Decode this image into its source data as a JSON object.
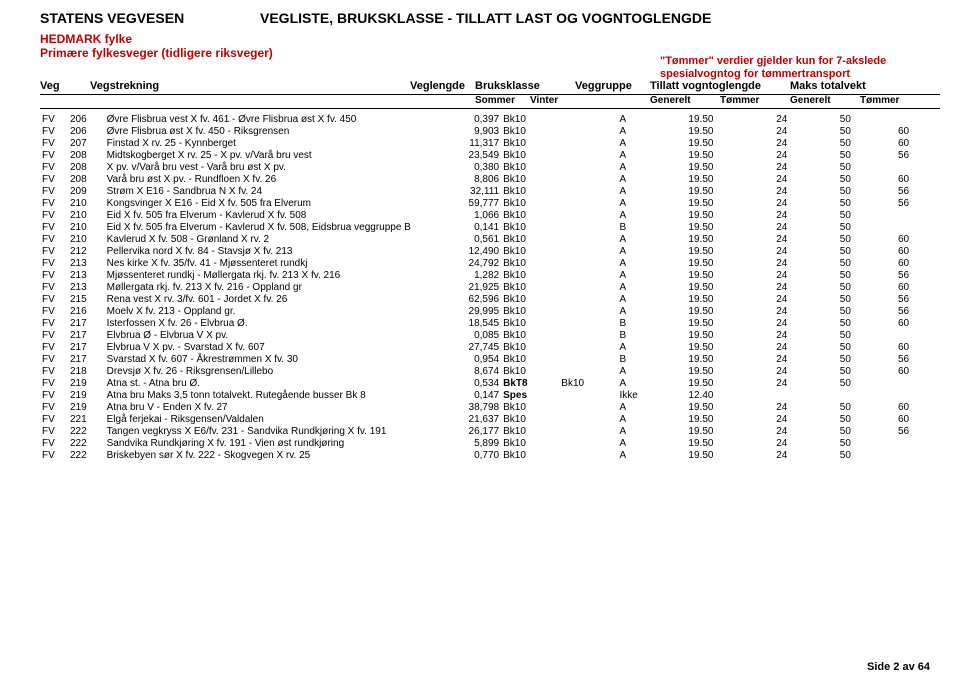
{
  "header": {
    "org": "STATENS VEGVESEN",
    "listTitle": "VEGLISTE, BRUKSKLASSE - TILLATT LAST OG VOGNTOGLENGDE",
    "region": "HEDMARK fylke",
    "subtitle": "Primære fylkesveger (tidligere riksveger)",
    "note1": "\"Tømmer\" verdier gjelder kun for 7-akslede",
    "note2": "spesialvogntog for tømmertransport",
    "colors": {
      "accent": "#c00000"
    }
  },
  "columns": {
    "veg": "Veg",
    "strekning": "Vegstrekning",
    "lengde": "Veglengde",
    "bruksklasse": "Bruksklasse",
    "veggruppe": "Veggruppe",
    "tillatt": "Tillatt vogntoglengde",
    "maks": "Maks totalvekt",
    "sommer": "Sommer",
    "vinter": "Vinter",
    "generelt": "Generelt",
    "tommer": "Tømmer"
  },
  "rows": [
    {
      "pf": "FV",
      "n": "206",
      "d": "Øvre Flisbrua vest X fv. 461 - Øvre Flisbrua øst X fv. 450",
      "len": "0,397",
      "bk1": "Bk10",
      "bk2": "",
      "vg": "A",
      "g1": "19.50",
      "t1": "24",
      "g2": "50",
      "t2": ""
    },
    {
      "pf": "FV",
      "n": "206",
      "d": "Øvre Flisbrua øst X fv. 450 - Riksgrensen",
      "len": "9,903",
      "bk1": "Bk10",
      "bk2": "",
      "vg": "A",
      "g1": "19.50",
      "t1": "24",
      "g2": "50",
      "t2": "60"
    },
    {
      "pf": "FV",
      "n": "207",
      "d": "Finstad X rv. 25 - Kynnberget",
      "len": "11,317",
      "bk1": "Bk10",
      "bk2": "",
      "vg": "A",
      "g1": "19.50",
      "t1": "24",
      "g2": "50",
      "t2": "60"
    },
    {
      "pf": "FV",
      "n": "208",
      "d": "Midtskogberget X rv. 25 - X pv. v/Varå bru vest",
      "len": "23,549",
      "bk1": "Bk10",
      "bk2": "",
      "vg": "A",
      "g1": "19.50",
      "t1": "24",
      "g2": "50",
      "t2": "56"
    },
    {
      "pf": "FV",
      "n": "208",
      "d": "X pv. v/Varå bru vest - Varå bru øst X pv.",
      "len": "0,380",
      "bk1": "Bk10",
      "bk2": "",
      "vg": "A",
      "g1": "19.50",
      "t1": "24",
      "g2": "50",
      "t2": ""
    },
    {
      "pf": "FV",
      "n": "208",
      "d": "Varå bru øst X pv. - Rundfloen X fv. 26",
      "len": "8,806",
      "bk1": "Bk10",
      "bk2": "",
      "vg": "A",
      "g1": "19.50",
      "t1": "24",
      "g2": "50",
      "t2": "60"
    },
    {
      "pf": "FV",
      "n": "209",
      "d": "Strøm X E16 - Sandbrua N X fv. 24",
      "len": "32,111",
      "bk1": "Bk10",
      "bk2": "",
      "vg": "A",
      "g1": "19.50",
      "t1": "24",
      "g2": "50",
      "t2": "56"
    },
    {
      "pf": "FV",
      "n": "210",
      "d": "Kongsvinger X E16 - Eid X fv. 505 fra Elverum",
      "len": "59,777",
      "bk1": "Bk10",
      "bk2": "",
      "vg": "A",
      "g1": "19.50",
      "t1": "24",
      "g2": "50",
      "t2": "56"
    },
    {
      "pf": "FV",
      "n": "210",
      "d": "Eid X fv. 505  fra Elverum - Kavlerud X fv. 508",
      "len": "1,066",
      "bk1": "Bk10",
      "bk2": "",
      "vg": "A",
      "g1": "19.50",
      "t1": "24",
      "g2": "50",
      "t2": ""
    },
    {
      "pf": "FV",
      "n": "210",
      "d": "Eid X fv. 505  fra Elverum - Kavlerud X fv. 508, Eidsbrua veggruppe B",
      "len": "0,141",
      "bk1": "Bk10",
      "bk2": "",
      "vg": "B",
      "g1": "19.50",
      "t1": "24",
      "g2": "50",
      "t2": ""
    },
    {
      "pf": "FV",
      "n": "210",
      "d": "Kavlerud X fv. 508 - Grønland X rv. 2",
      "len": "0,561",
      "bk1": "Bk10",
      "bk2": "",
      "vg": "A",
      "g1": "19.50",
      "t1": "24",
      "g2": "50",
      "t2": "60"
    },
    {
      "pf": "FV",
      "n": "212",
      "d": "Pellervika nord X fv. 84 - Stavsjø X fv. 213",
      "len": "12,490",
      "bk1": "Bk10",
      "bk2": "",
      "vg": "A",
      "g1": "19.50",
      "t1": "24",
      "g2": "50",
      "t2": "60"
    },
    {
      "pf": "FV",
      "n": "213",
      "d": "Nes kirke X fv. 35/fv. 41 - Mjøssenteret rundkj",
      "len": "24,792",
      "bk1": "Bk10",
      "bk2": "",
      "vg": "A",
      "g1": "19.50",
      "t1": "24",
      "g2": "50",
      "t2": "60"
    },
    {
      "pf": "FV",
      "n": "213",
      "d": "Mjøssenteret rundkj - Møllergata rkj. fv. 213 X fv. 216",
      "len": "1,282",
      "bk1": "Bk10",
      "bk2": "",
      "vg": "A",
      "g1": "19.50",
      "t1": "24",
      "g2": "50",
      "t2": "56"
    },
    {
      "pf": "FV",
      "n": "213",
      "d": "Møllergata rkj. fv. 213 X fv. 216 - Oppland gr",
      "len": "21,925",
      "bk1": "Bk10",
      "bk2": "",
      "vg": "A",
      "g1": "19.50",
      "t1": "24",
      "g2": "50",
      "t2": "60"
    },
    {
      "pf": "FV",
      "n": "215",
      "d": "Rena vest X rv. 3/fv. 601 - Jordet X fv. 26",
      "len": "62,596",
      "bk1": "Bk10",
      "bk2": "",
      "vg": "A",
      "g1": "19.50",
      "t1": "24",
      "g2": "50",
      "t2": "56"
    },
    {
      "pf": "FV",
      "n": "216",
      "d": "Moelv X fv. 213 - Oppland gr.",
      "len": "29,995",
      "bk1": "Bk10",
      "bk2": "",
      "vg": "A",
      "g1": "19.50",
      "t1": "24",
      "g2": "50",
      "t2": "56"
    },
    {
      "pf": "FV",
      "n": "217",
      "d": "Isterfossen X fv. 26 - Elvbrua Ø.",
      "len": "18,545",
      "bk1": "Bk10",
      "bk2": "",
      "vg": "B",
      "g1": "19.50",
      "t1": "24",
      "g2": "50",
      "t2": "60"
    },
    {
      "pf": "FV",
      "n": "217",
      "d": "Elvbrua Ø - Elvbrua V X pv.",
      "len": "0,085",
      "bk1": "Bk10",
      "bk2": "",
      "vg": "B",
      "g1": "19.50",
      "t1": "24",
      "g2": "50",
      "t2": ""
    },
    {
      "pf": "FV",
      "n": "217",
      "d": "Elvbrua V X pv. - Svarstad X fv. 607",
      "len": "27,745",
      "bk1": "Bk10",
      "bk2": "",
      "vg": "A",
      "g1": "19.50",
      "t1": "24",
      "g2": "50",
      "t2": "60"
    },
    {
      "pf": "FV",
      "n": "217",
      "d": "Svarstad X fv. 607 - Åkrestrømmen X fv. 30",
      "len": "0,954",
      "bk1": "Bk10",
      "bk2": "",
      "vg": "B",
      "g1": "19.50",
      "t1": "24",
      "g2": "50",
      "t2": "56"
    },
    {
      "pf": "FV",
      "n": "218",
      "d": "Drevsjø X fv. 26 - Riksgrensen/Lillebo",
      "len": "8,674",
      "bk1": "Bk10",
      "bk2": "",
      "vg": "A",
      "g1": "19.50",
      "t1": "24",
      "g2": "50",
      "t2": "60"
    },
    {
      "pf": "FV",
      "n": "219",
      "d": "Atna st. - Atna bru Ø.",
      "len": "0,534",
      "bk1": "BkT8",
      "bk2": "Bk10",
      "vg": "A",
      "g1": "19.50",
      "t1": "24",
      "g2": "50",
      "t2": ""
    },
    {
      "pf": "FV",
      "n": "219",
      "d": "Atna bru  Maks 3,5 tonn totalvekt. Rutegående busser Bk 8",
      "len": "0,147",
      "bk1": "Spes",
      "bk2": "",
      "vg": "Ikke",
      "g1": "12.40",
      "t1": "",
      "g2": "",
      "t2": ""
    },
    {
      "pf": "FV",
      "n": "219",
      "d": "Atna bru V - Enden X fv. 27",
      "len": "38,798",
      "bk1": "Bk10",
      "bk2": "",
      "vg": "A",
      "g1": "19.50",
      "t1": "24",
      "g2": "50",
      "t2": "60"
    },
    {
      "pf": "FV",
      "n": "221",
      "d": "Elgå ferjekai - Riksgensen/Valdalen",
      "len": "21,637",
      "bk1": "Bk10",
      "bk2": "",
      "vg": "A",
      "g1": "19.50",
      "t1": "24",
      "g2": "50",
      "t2": "60"
    },
    {
      "pf": "FV",
      "n": "222",
      "d": "Tangen vegkryss X E6/fv. 231 - Sandvika Rundkjøring  X fv. 191",
      "len": "26,177",
      "bk1": "Bk10",
      "bk2": "",
      "vg": "A",
      "g1": "19.50",
      "t1": "24",
      "g2": "50",
      "t2": "56"
    },
    {
      "pf": "FV",
      "n": "222",
      "d": "Sandvika Rundkjøring X fv. 191 - Vien øst rundkjøring",
      "len": "5,899",
      "bk1": "Bk10",
      "bk2": "",
      "vg": "A",
      "g1": "19.50",
      "t1": "24",
      "g2": "50",
      "t2": ""
    },
    {
      "pf": "FV",
      "n": "222",
      "d": "Briskebyen sør X fv. 222 - Skogvegen X rv. 25",
      "len": "0,770",
      "bk1": "Bk10",
      "bk2": "",
      "vg": "A",
      "g1": "19.50",
      "t1": "24",
      "g2": "50",
      "t2": ""
    }
  ],
  "footer": {
    "page": "Side 2 av 64"
  }
}
